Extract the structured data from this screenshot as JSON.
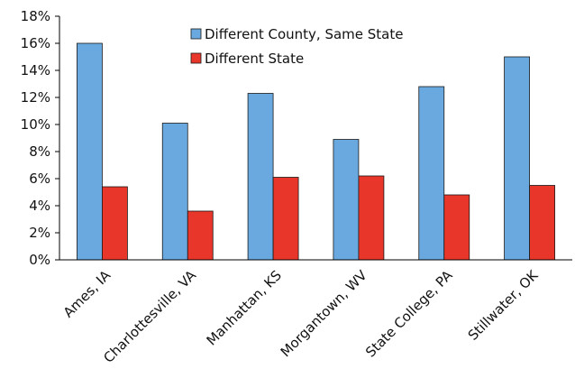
{
  "chart_data": {
    "type": "bar",
    "categories": [
      "Ames, IA",
      "Charlottesville, VA",
      "Manhattan, KS",
      "Morgantown, WV",
      "State College, PA",
      "Stillwater, OK"
    ],
    "series": [
      {
        "name": "Different County, Same State",
        "color": "#6aa9e0",
        "values": [
          16.0,
          10.1,
          12.3,
          8.9,
          12.8,
          15.0
        ]
      },
      {
        "name": "Different State",
        "color": "#e8362a",
        "values": [
          5.4,
          3.6,
          6.1,
          6.2,
          4.8,
          5.5
        ]
      }
    ],
    "y_ticks": [
      "0%",
      "2%",
      "4%",
      "6%",
      "8%",
      "10%",
      "12%",
      "14%",
      "16%",
      "18%"
    ],
    "ylim": [
      0,
      18
    ],
    "y_unit": "%",
    "grid": false,
    "legend_position": "top-center",
    "title": "",
    "xlabel": "",
    "ylabel": ""
  }
}
